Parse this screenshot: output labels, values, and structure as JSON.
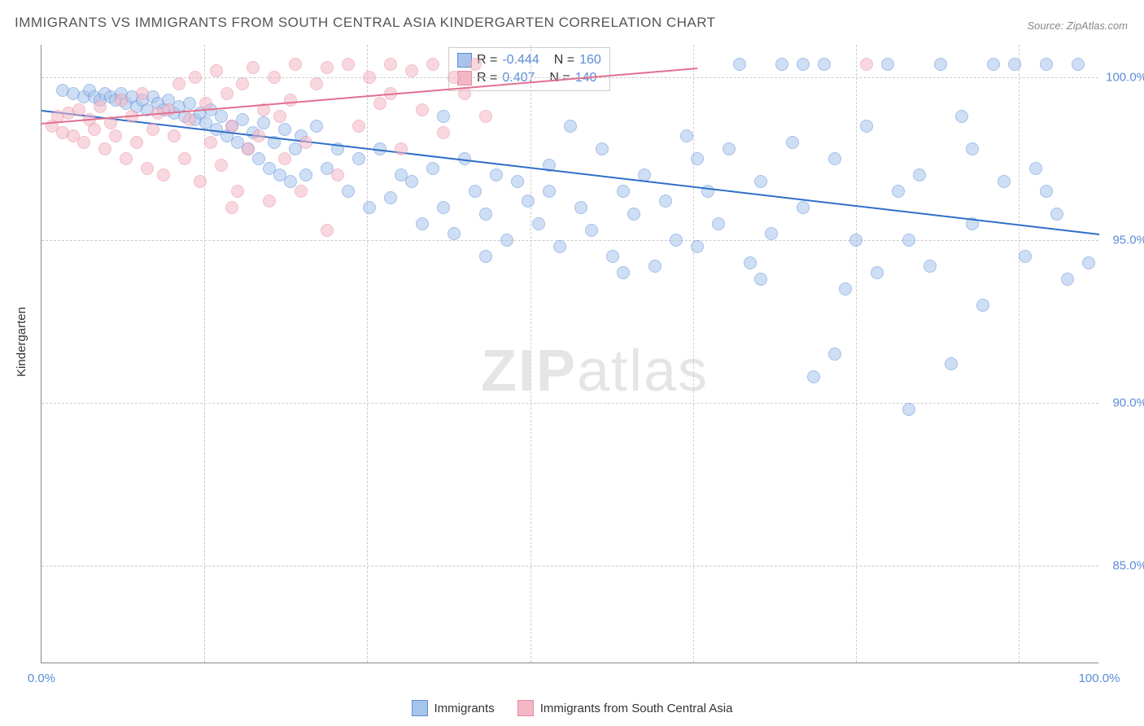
{
  "title": "IMMIGRANTS VS IMMIGRANTS FROM SOUTH CENTRAL ASIA KINDERGARTEN CORRELATION CHART",
  "source": "Source: ZipAtlas.com",
  "ylabel": "Kindergarten",
  "watermark_a": "ZIP",
  "watermark_b": "atlas",
  "chart": {
    "type": "scatter",
    "background_color": "#ffffff",
    "grid_color": "#cccccc",
    "xlim": [
      0,
      100
    ],
    "ylim": [
      82,
      101
    ],
    "xtick_labels": [
      "0.0%",
      "100.0%"
    ],
    "xtick_positions": [
      0,
      100
    ],
    "ytick_labels": [
      "85.0%",
      "90.0%",
      "95.0%",
      "100.0%"
    ],
    "ytick_positions": [
      85,
      90,
      95,
      100
    ],
    "vgrid_positions": [
      15.4,
      30.8,
      46.2,
      61.6,
      77.0,
      92.4
    ],
    "series": [
      {
        "name": "Immigrants",
        "fill": "#a7c4ec",
        "stroke": "#5b8dd6",
        "R": "-0.444",
        "N": "160",
        "trend": {
          "x1": 0,
          "y1": 99.0,
          "x2": 100,
          "y2": 95.2,
          "color": "#2f6fc9"
        },
        "points": [
          [
            2,
            99.6
          ],
          [
            3,
            99.5
          ],
          [
            4,
            99.4
          ],
          [
            4.5,
            99.6
          ],
          [
            5,
            99.4
          ],
          [
            5.5,
            99.3
          ],
          [
            6,
            99.5
          ],
          [
            6.5,
            99.4
          ],
          [
            7,
            99.3
          ],
          [
            7.5,
            99.5
          ],
          [
            8,
            99.2
          ],
          [
            8.5,
            99.4
          ],
          [
            9,
            99.1
          ],
          [
            9.5,
            99.3
          ],
          [
            10,
            99.0
          ],
          [
            10.5,
            99.4
          ],
          [
            11,
            99.2
          ],
          [
            11.5,
            99.0
          ],
          [
            12,
            99.3
          ],
          [
            12.5,
            98.9
          ],
          [
            13,
            99.1
          ],
          [
            13.5,
            98.8
          ],
          [
            14,
            99.2
          ],
          [
            14.5,
            98.7
          ],
          [
            15,
            98.9
          ],
          [
            15.5,
            98.6
          ],
          [
            16,
            99.0
          ],
          [
            16.5,
            98.4
          ],
          [
            17,
            98.8
          ],
          [
            17.5,
            98.2
          ],
          [
            18,
            98.5
          ],
          [
            18.5,
            98.0
          ],
          [
            19,
            98.7
          ],
          [
            19.5,
            97.8
          ],
          [
            20,
            98.3
          ],
          [
            20.5,
            97.5
          ],
          [
            21,
            98.6
          ],
          [
            21.5,
            97.2
          ],
          [
            22,
            98.0
          ],
          [
            22.5,
            97.0
          ],
          [
            23,
            98.4
          ],
          [
            23.5,
            96.8
          ],
          [
            24,
            97.8
          ],
          [
            24.5,
            98.2
          ],
          [
            25,
            97.0
          ],
          [
            26,
            98.5
          ],
          [
            27,
            97.2
          ],
          [
            28,
            97.8
          ],
          [
            29,
            96.5
          ],
          [
            30,
            97.5
          ],
          [
            31,
            96.0
          ],
          [
            32,
            97.8
          ],
          [
            33,
            96.3
          ],
          [
            34,
            97.0
          ],
          [
            35,
            96.8
          ],
          [
            36,
            95.5
          ],
          [
            37,
            97.2
          ],
          [
            38,
            96.0
          ],
          [
            39,
            95.2
          ],
          [
            40,
            97.5
          ],
          [
            41,
            96.5
          ],
          [
            42,
            95.8
          ],
          [
            43,
            97.0
          ],
          [
            44,
            95.0
          ],
          [
            45,
            96.8
          ],
          [
            46,
            96.2
          ],
          [
            47,
            95.5
          ],
          [
            48,
            97.3
          ],
          [
            49,
            94.8
          ],
          [
            50,
            98.5
          ],
          [
            51,
            96.0
          ],
          [
            52,
            95.3
          ],
          [
            53,
            97.8
          ],
          [
            54,
            94.5
          ],
          [
            55,
            96.5
          ],
          [
            56,
            95.8
          ],
          [
            57,
            97.0
          ],
          [
            58,
            94.2
          ],
          [
            59,
            96.2
          ],
          [
            60,
            95.0
          ],
          [
            61,
            98.2
          ],
          [
            62,
            94.8
          ],
          [
            63,
            96.5
          ],
          [
            64,
            95.5
          ],
          [
            65,
            97.8
          ],
          [
            66,
            100.4
          ],
          [
            67,
            94.3
          ],
          [
            68,
            96.8
          ],
          [
            69,
            95.2
          ],
          [
            70,
            100.4
          ],
          [
            71,
            98.0
          ],
          [
            72,
            96.0
          ],
          [
            73,
            90.8
          ],
          [
            74,
            100.4
          ],
          [
            75,
            97.5
          ],
          [
            76,
            93.5
          ],
          [
            77,
            95.0
          ],
          [
            78,
            98.5
          ],
          [
            79,
            94.0
          ],
          [
            80,
            100.4
          ],
          [
            81,
            96.5
          ],
          [
            82,
            89.8
          ],
          [
            83,
            97.0
          ],
          [
            84,
            94.2
          ],
          [
            85,
            100.4
          ],
          [
            86,
            91.2
          ],
          [
            87,
            98.8
          ],
          [
            88,
            95.5
          ],
          [
            89,
            93.0
          ],
          [
            90,
            100.4
          ],
          [
            91,
            96.8
          ],
          [
            92,
            100.4
          ],
          [
            93,
            94.5
          ],
          [
            94,
            97.2
          ],
          [
            95,
            100.4
          ],
          [
            96,
            95.8
          ],
          [
            97,
            93.8
          ],
          [
            98,
            100.4
          ],
          [
            99,
            94.3
          ],
          [
            72,
            100.4
          ],
          [
            38,
            98.8
          ],
          [
            42,
            94.5
          ],
          [
            48,
            96.5
          ],
          [
            55,
            94.0
          ],
          [
            62,
            97.5
          ],
          [
            68,
            93.8
          ],
          [
            75,
            91.5
          ],
          [
            82,
            95.0
          ],
          [
            88,
            97.8
          ],
          [
            95,
            96.5
          ]
        ]
      },
      {
        "name": "Immigrants from South Central Asia",
        "fill": "#f4b7c5",
        "stroke": "#e98aa3",
        "R": "0.407",
        "N": "140",
        "trend": {
          "x1": 0,
          "y1": 98.6,
          "x2": 62,
          "y2": 100.3,
          "color": "#e26f8f"
        },
        "points": [
          [
            1,
            98.5
          ],
          [
            1.5,
            98.8
          ],
          [
            2,
            98.3
          ],
          [
            2.5,
            98.9
          ],
          [
            3,
            98.2
          ],
          [
            3.5,
            99.0
          ],
          [
            4,
            98.0
          ],
          [
            4.5,
            98.7
          ],
          [
            5,
            98.4
          ],
          [
            5.5,
            99.1
          ],
          [
            6,
            97.8
          ],
          [
            6.5,
            98.6
          ],
          [
            7,
            98.2
          ],
          [
            7.5,
            99.3
          ],
          [
            8,
            97.5
          ],
          [
            8.5,
            98.8
          ],
          [
            9,
            98.0
          ],
          [
            9.5,
            99.5
          ],
          [
            10,
            97.2
          ],
          [
            10.5,
            98.4
          ],
          [
            11,
            98.9
          ],
          [
            11.5,
            97.0
          ],
          [
            12,
            99.0
          ],
          [
            12.5,
            98.2
          ],
          [
            13,
            99.8
          ],
          [
            13.5,
            97.5
          ],
          [
            14,
            98.7
          ],
          [
            14.5,
            100.0
          ],
          [
            15,
            96.8
          ],
          [
            15.5,
            99.2
          ],
          [
            16,
            98.0
          ],
          [
            16.5,
            100.2
          ],
          [
            17,
            97.3
          ],
          [
            17.5,
            99.5
          ],
          [
            18,
            98.5
          ],
          [
            18.5,
            96.5
          ],
          [
            19,
            99.8
          ],
          [
            19.5,
            97.8
          ],
          [
            20,
            100.3
          ],
          [
            20.5,
            98.2
          ],
          [
            21,
            99.0
          ],
          [
            21.5,
            96.2
          ],
          [
            22,
            100.0
          ],
          [
            22.5,
            98.8
          ],
          [
            23,
            97.5
          ],
          [
            23.5,
            99.3
          ],
          [
            24,
            100.4
          ],
          [
            24.5,
            96.5
          ],
          [
            25,
            98.0
          ],
          [
            26,
            99.8
          ],
          [
            27,
            100.3
          ],
          [
            28,
            97.0
          ],
          [
            29,
            100.4
          ],
          [
            30,
            98.5
          ],
          [
            31,
            100.0
          ],
          [
            32,
            99.2
          ],
          [
            33,
            100.4
          ],
          [
            34,
            97.8
          ],
          [
            35,
            100.2
          ],
          [
            36,
            99.0
          ],
          [
            37,
            100.4
          ],
          [
            38,
            98.3
          ],
          [
            39,
            100.0
          ],
          [
            40,
            99.5
          ],
          [
            41,
            100.4
          ],
          [
            42,
            98.8
          ],
          [
            27,
            95.3
          ],
          [
            18,
            96.0
          ],
          [
            78,
            100.4
          ],
          [
            33,
            99.5
          ]
        ]
      }
    ]
  },
  "bottom_legend": [
    {
      "label": "Immigrants",
      "fill": "#a7c4ec",
      "stroke": "#5b8dd6"
    },
    {
      "label": "Immigrants from South Central Asia",
      "fill": "#f4b7c5",
      "stroke": "#e98aa3"
    }
  ]
}
